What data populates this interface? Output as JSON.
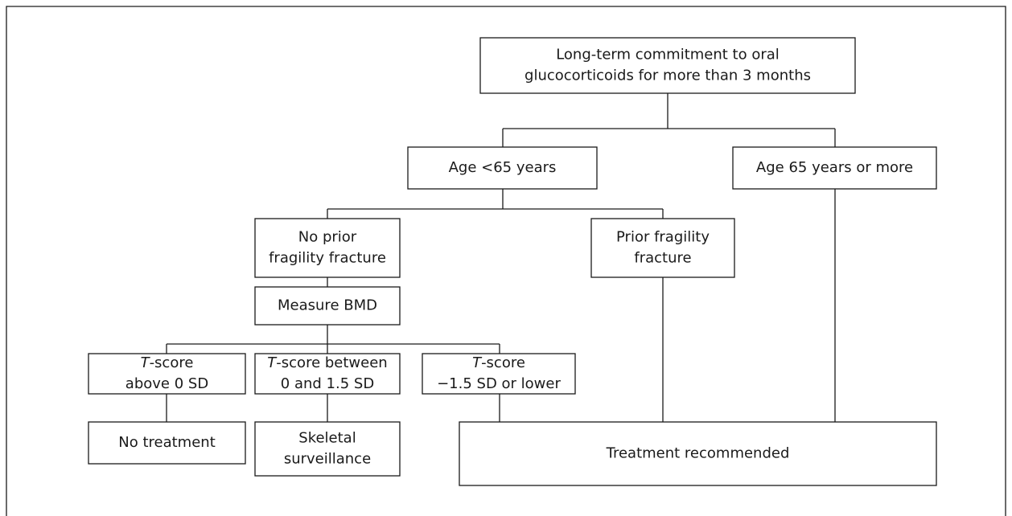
{
  "nodes": [
    {
      "lines": [
        [
          "Long-term commitment to oral"
        ],
        [
          "glucocorticoids for more than 3 months"
        ]
      ]
    },
    {
      "lines": [
        [
          "Age <65 years"
        ]
      ]
    },
    {
      "lines": [
        [
          "Age 65 years or more"
        ]
      ]
    },
    {
      "lines": [
        [
          "No prior"
        ],
        [
          "fragility fracture"
        ]
      ]
    },
    {
      "lines": [
        [
          "Prior fragility"
        ],
        [
          "fracture"
        ]
      ]
    },
    {
      "lines": [
        [
          "Measure BMD"
        ]
      ]
    },
    {
      "lines": [
        [
          {
            "text": "T",
            "italic": true
          },
          "-score"
        ],
        [
          "above 0 SD"
        ]
      ]
    },
    {
      "lines": [
        [
          {
            "text": "T",
            "italic": true
          },
          "-score between"
        ],
        [
          "0 and 1.5 SD"
        ]
      ]
    },
    {
      "lines": [
        [
          {
            "text": "T",
            "italic": true
          },
          "-score"
        ],
        [
          "−1.5 SD or lower"
        ]
      ]
    },
    {
      "lines": [
        [
          "No treatment"
        ]
      ]
    },
    {
      "lines": [
        [
          "Skeletal"
        ],
        [
          "surveillance"
        ]
      ]
    },
    {
      "lines": [
        [
          "Treatment recommended"
        ]
      ]
    }
  ]
}
